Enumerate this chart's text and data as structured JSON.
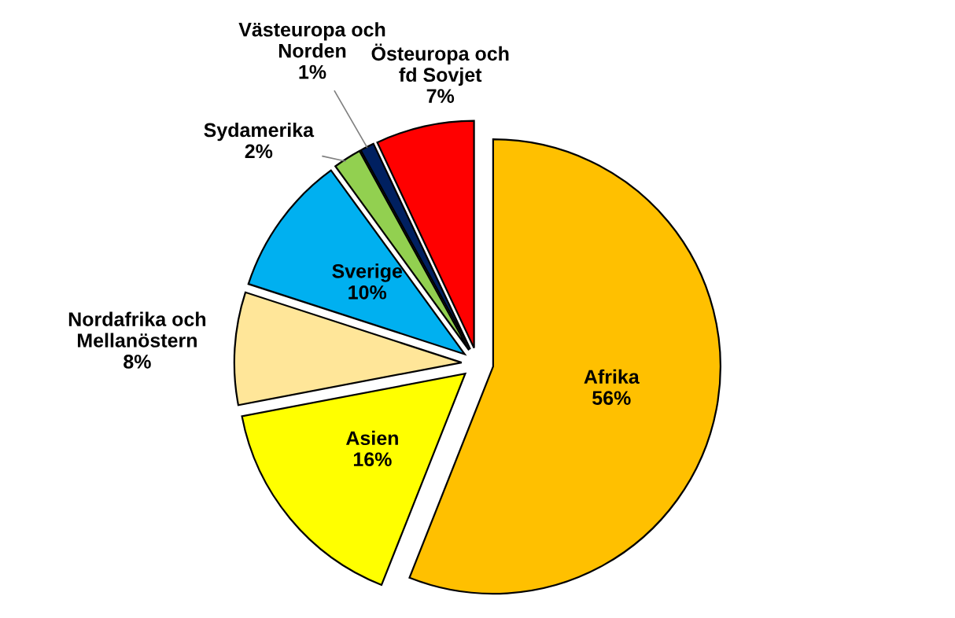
{
  "chart_data": {
    "type": "pie",
    "categories": [
      "Afrika",
      "Asien",
      "Nordafrika och\nMellanöstern",
      "Sverige",
      "Sydamerika",
      "Västeuropa och\nNorden",
      "Östeuropa och\nfd Sovjet"
    ],
    "values": [
      56,
      16,
      8,
      10,
      2,
      1,
      7
    ],
    "colors": [
      "#ffc000",
      "#ffff00",
      "#ffe699",
      "#00b0f0",
      "#92d050",
      "#002060",
      "#ff0000"
    ],
    "value_labels": [
      "56%",
      "16%",
      "8%",
      "10%",
      "2%",
      "1%",
      "7%"
    ],
    "legend": false
  }
}
